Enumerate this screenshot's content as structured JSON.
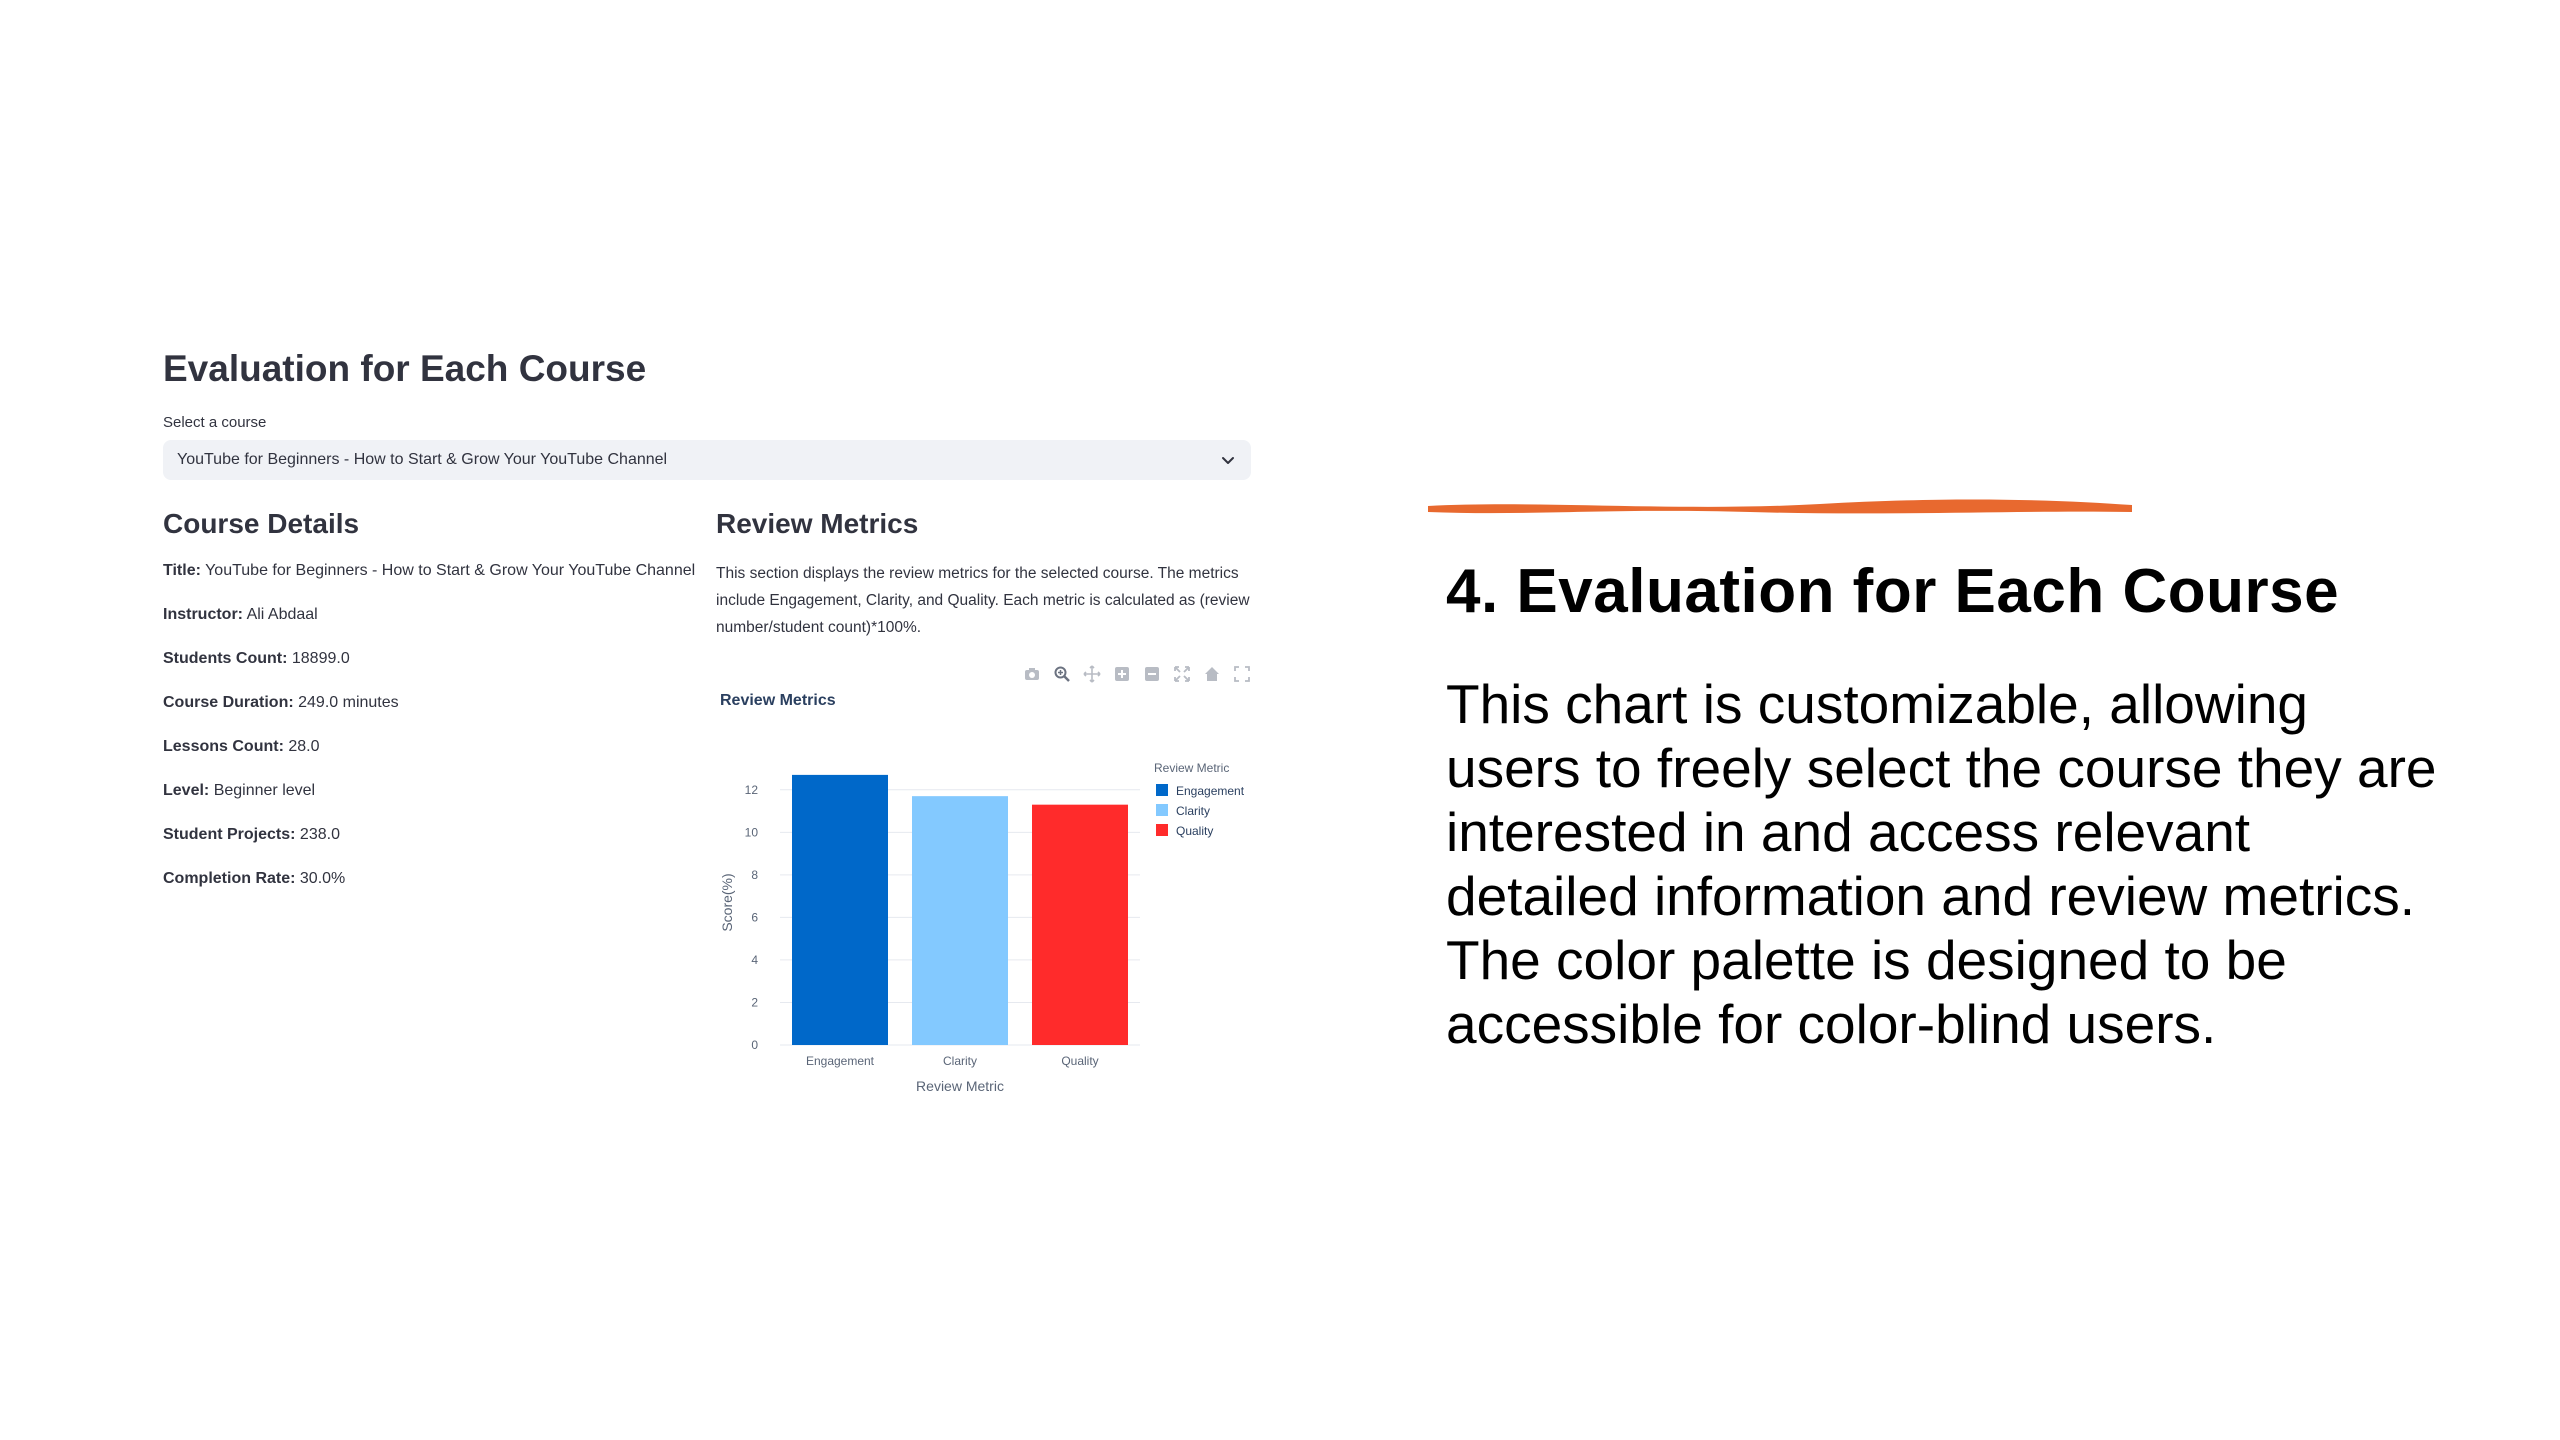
{
  "app": {
    "title": "Evaluation for Each Course",
    "select_label": "Select a course",
    "selected_course": "YouTube for Beginners - How to Start & Grow Your YouTube Channel"
  },
  "course_details": {
    "heading": "Course Details",
    "fields": [
      {
        "label": "Title:",
        "value": "YouTube for Beginners - How to Start & Grow Your YouTube Channel"
      },
      {
        "label": "Instructor:",
        "value": "Ali Abdaal"
      },
      {
        "label": "Students Count:",
        "value": "18899.0"
      },
      {
        "label": "Course Duration:",
        "value": "249.0 minutes"
      },
      {
        "label": "Lessons Count:",
        "value": "28.0"
      },
      {
        "label": "Level:",
        "value": "Beginner level"
      },
      {
        "label": "Student Projects:",
        "value": "238.0"
      },
      {
        "label": "Completion Rate:",
        "value": "30.0%"
      }
    ]
  },
  "review_metrics": {
    "heading": "Review Metrics",
    "description": "This section displays the review metrics for the selected course. The metrics include Engagement, Clarity, and Quality. Each metric is calculated as (review number/student count)*100%."
  },
  "modebar_icons": [
    "camera-icon",
    "zoom-icon",
    "pan-icon",
    "zoom-in-icon",
    "zoom-out-icon",
    "autoscale-icon",
    "home-icon",
    "fullscreen-icon"
  ],
  "chart_data": {
    "type": "bar",
    "title": "Review Metrics",
    "xlabel": "Review Metric",
    "ylabel": "Score(%)",
    "categories": [
      "Engagement",
      "Clarity",
      "Quality"
    ],
    "values": [
      12.7,
      11.7,
      11.3
    ],
    "colors": [
      "#0068c9",
      "#83c9ff",
      "#ff2b2b"
    ],
    "yticks": [
      0,
      2,
      4,
      6,
      8,
      10,
      12
    ],
    "ylim": [
      0,
      13.4
    ],
    "grid": true,
    "legend": {
      "title": "Review Metric",
      "position": "top-right",
      "entries": [
        "Engagement",
        "Clarity",
        "Quality"
      ]
    }
  },
  "slide": {
    "title": "4. Evaluation for Each Course",
    "body": "This chart is customizable, allowing users to freely select the course they are interested in and access relevant detailed information and review metrics. The color palette is designed to be accessible for color-blind users.",
    "accent_color": "#e8692f"
  }
}
